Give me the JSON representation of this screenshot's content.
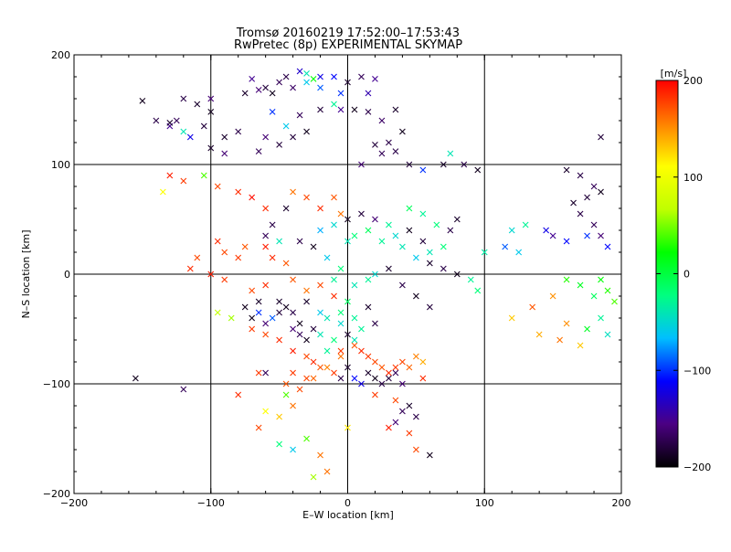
{
  "chart_data": {
    "type": "scatter",
    "title": "Tromsø 20160219 17:52:00–17:53:43",
    "subtitle": "RwPretec (8p) EXPERIMENTAL SKYMAP",
    "xlabel": "E–W location [km]",
    "ylabel": "N–S location [km]",
    "xlim": [
      -200,
      200
    ],
    "ylim": [
      -200,
      200
    ],
    "xticks": [
      -200,
      -100,
      0,
      100,
      200
    ],
    "yticks": [
      -200,
      -100,
      0,
      100,
      200
    ],
    "xtick_labels": [
      "−200",
      "−100",
      "0",
      "100",
      "200"
    ],
    "ytick_labels": [
      "−200",
      "−100",
      "0",
      "100",
      "200"
    ],
    "grid": true,
    "grid_lines": [
      -100,
      0,
      100
    ],
    "colorbar": {
      "label": "[m/s]",
      "range": [
        -200,
        200
      ],
      "ticks": [
        200,
        100,
        0,
        -100,
        -200
      ],
      "tick_labels": [
        "200",
        "100",
        "0",
        "−100",
        "−200"
      ],
      "colormap": [
        "#000000",
        "#4b0082",
        "#0000ff",
        "#00bfff",
        "#00ff80",
        "#00ff00",
        "#c0ff00",
        "#ffff00",
        "#ff8000",
        "#ff0000"
      ]
    },
    "marker_types": [
      "dot",
      "x"
    ],
    "points": [
      [
        -60,
        170,
        -180,
        "x"
      ],
      [
        -55,
        165,
        -190,
        "x"
      ],
      [
        -65,
        168,
        -160,
        "x"
      ],
      [
        -50,
        175,
        -170,
        "x"
      ],
      [
        -70,
        178,
        -150,
        "x"
      ],
      [
        -45,
        180,
        -175,
        "x"
      ],
      [
        -40,
        170,
        -165,
        "x"
      ],
      [
        -75,
        165,
        -185,
        "x"
      ],
      [
        -30,
        175,
        -60,
        "x"
      ],
      [
        -25,
        178,
        20,
        "x"
      ],
      [
        -35,
        185,
        -130,
        "x"
      ],
      [
        -20,
        180,
        -120,
        "x"
      ],
      [
        -10,
        180,
        -110,
        "x"
      ],
      [
        0,
        175,
        -185,
        "x"
      ],
      [
        10,
        180,
        -170,
        "x"
      ],
      [
        20,
        178,
        -150,
        "x"
      ],
      [
        -5,
        165,
        -100,
        "x"
      ],
      [
        15,
        165,
        -140,
        "x"
      ],
      [
        -150,
        158,
        -190,
        "x"
      ],
      [
        -120,
        160,
        -175,
        "x"
      ],
      [
        -110,
        155,
        -185,
        "x"
      ],
      [
        -100,
        160,
        -160,
        "x"
      ],
      [
        -125,
        140,
        -170,
        "x"
      ],
      [
        -105,
        135,
        -180,
        "x"
      ],
      [
        -130,
        135,
        -150,
        "x"
      ],
      [
        -115,
        125,
        -120,
        "x"
      ],
      [
        -120,
        130,
        -40,
        "x"
      ],
      [
        -100,
        148,
        -190,
        "x"
      ],
      [
        -90,
        125,
        -185,
        "x"
      ],
      [
        -80,
        130,
        -175,
        "x"
      ],
      [
        -60,
        125,
        -160,
        "x"
      ],
      [
        -40,
        125,
        -180,
        "x"
      ],
      [
        -35,
        145,
        -170,
        "x"
      ],
      [
        -20,
        150,
        -180,
        "x"
      ],
      [
        -10,
        155,
        -30,
        "x"
      ],
      [
        -5,
        150,
        -150,
        "x"
      ],
      [
        5,
        150,
        -190,
        "x"
      ],
      [
        -55,
        148,
        -100,
        "x"
      ],
      [
        -45,
        135,
        -60,
        "x"
      ],
      [
        -30,
        130,
        -190,
        "x"
      ],
      [
        -50,
        118,
        -180,
        "x"
      ],
      [
        -65,
        112,
        -170,
        "x"
      ],
      [
        -100,
        115,
        -185,
        "x"
      ],
      [
        -90,
        110,
        -160,
        "x"
      ],
      [
        -130,
        138,
        -185,
        "x"
      ],
      [
        -140,
        140,
        -175,
        "x"
      ],
      [
        185,
        125,
        -180,
        "x"
      ],
      [
        -30,
        183,
        -40,
        "x"
      ],
      [
        -20,
        170,
        -90,
        "x"
      ],
      [
        15,
        148,
        -175,
        "x"
      ],
      [
        25,
        140,
        -165,
        "x"
      ],
      [
        35,
        150,
        -185,
        "x"
      ],
      [
        40,
        130,
        -190,
        "x"
      ],
      [
        30,
        120,
        -175,
        "x"
      ],
      [
        25,
        110,
        -170,
        "x"
      ],
      [
        45,
        100,
        -180,
        "x"
      ],
      [
        55,
        95,
        -100,
        "x"
      ],
      [
        70,
        100,
        -185,
        "x"
      ],
      [
        85,
        100,
        -175,
        "x"
      ],
      [
        95,
        95,
        -190,
        "x"
      ],
      [
        75,
        110,
        -40,
        "x"
      ],
      [
        20,
        118,
        -180,
        "x"
      ],
      [
        35,
        112,
        -175,
        "x"
      ],
      [
        10,
        100,
        -160,
        "x"
      ],
      [
        160,
        95,
        -185,
        "x"
      ],
      [
        170,
        90,
        -175,
        "x"
      ],
      [
        180,
        80,
        -170,
        "x"
      ],
      [
        175,
        70,
        -180,
        "x"
      ],
      [
        185,
        75,
        -190,
        "x"
      ],
      [
        165,
        65,
        -185,
        "x"
      ],
      [
        170,
        55,
        -175,
        "x"
      ],
      [
        180,
        45,
        -170,
        "x"
      ],
      [
        185,
        35,
        -160,
        "x"
      ],
      [
        190,
        25,
        -110,
        "x"
      ],
      [
        175,
        35,
        -100,
        "x"
      ],
      [
        120,
        40,
        -50,
        "x"
      ],
      [
        130,
        45,
        -30,
        "x"
      ],
      [
        145,
        40,
        -120,
        "x"
      ],
      [
        150,
        35,
        -150,
        "x"
      ],
      [
        160,
        30,
        -110,
        "x"
      ],
      [
        115,
        25,
        -90,
        "x"
      ],
      [
        125,
        20,
        -60,
        "x"
      ],
      [
        100,
        20,
        -35,
        "x"
      ],
      [
        120,
        -40,
        130,
        "x"
      ],
      [
        160,
        -5,
        30,
        "x"
      ],
      [
        170,
        -10,
        10,
        "x"
      ],
      [
        180,
        -20,
        -10,
        "x"
      ],
      [
        185,
        -40,
        -30,
        "x"
      ],
      [
        190,
        -55,
        -45,
        "x"
      ],
      [
        175,
        -50,
        10,
        "x"
      ],
      [
        170,
        -65,
        130,
        "x"
      ],
      [
        160,
        -45,
        150,
        "x"
      ],
      [
        150,
        -20,
        150,
        "x"
      ],
      [
        135,
        -30,
        170,
        "x"
      ],
      [
        185,
        -5,
        20,
        "x"
      ],
      [
        190,
        -15,
        30,
        "x"
      ],
      [
        195,
        -25,
        40,
        "x"
      ],
      [
        140,
        -55,
        140,
        "x"
      ],
      [
        155,
        -60,
        160,
        "x"
      ],
      [
        -130,
        90,
        190,
        "x"
      ],
      [
        -135,
        75,
        110,
        "x"
      ],
      [
        -120,
        85,
        180,
        "x"
      ],
      [
        -105,
        90,
        40,
        "x"
      ],
      [
        -95,
        80,
        175,
        "x"
      ],
      [
        -80,
        75,
        185,
        "x"
      ],
      [
        -70,
        70,
        195,
        "x"
      ],
      [
        -60,
        60,
        185,
        "x"
      ],
      [
        -40,
        75,
        160,
        "x"
      ],
      [
        -30,
        70,
        175,
        "x"
      ],
      [
        -20,
        60,
        185,
        "x"
      ],
      [
        -10,
        70,
        170,
        "x"
      ],
      [
        -5,
        55,
        160,
        "x"
      ],
      [
        -95,
        30,
        185,
        "x"
      ],
      [
        -90,
        20,
        175,
        "x"
      ],
      [
        -80,
        15,
        180,
        "x"
      ],
      [
        -75,
        25,
        170,
        "x"
      ],
      [
        -60,
        25,
        190,
        "x"
      ],
      [
        -55,
        15,
        185,
        "x"
      ],
      [
        -45,
        10,
        170,
        "x"
      ],
      [
        -110,
        15,
        175,
        "x"
      ],
      [
        -115,
        5,
        185,
        "x"
      ],
      [
        -100,
        0,
        190,
        "x"
      ],
      [
        -90,
        -5,
        180,
        "x"
      ],
      [
        -70,
        -15,
        175,
        "x"
      ],
      [
        -60,
        -10,
        185,
        "x"
      ],
      [
        -40,
        -5,
        170,
        "x"
      ],
      [
        -30,
        -15,
        160,
        "x"
      ],
      [
        -20,
        -10,
        175,
        "x"
      ],
      [
        -10,
        -20,
        185,
        "x"
      ],
      [
        -45,
        -30,
        -190,
        "x"
      ],
      [
        -40,
        -35,
        -175,
        "x"
      ],
      [
        -30,
        -25,
        -185,
        "x"
      ],
      [
        -55,
        -40,
        -90,
        "x"
      ],
      [
        -65,
        -35,
        -100,
        "x"
      ],
      [
        -85,
        -40,
        60,
        "x"
      ],
      [
        -95,
        -35,
        70,
        "x"
      ],
      [
        -70,
        -50,
        180,
        "x"
      ],
      [
        -60,
        -55,
        175,
        "x"
      ],
      [
        -50,
        -60,
        185,
        "x"
      ],
      [
        -40,
        -70,
        190,
        "x"
      ],
      [
        -30,
        -75,
        175,
        "x"
      ],
      [
        -25,
        -80,
        185,
        "x"
      ],
      [
        -20,
        -85,
        170,
        "x"
      ],
      [
        -10,
        -90,
        180,
        "x"
      ],
      [
        -30,
        -95,
        175,
        "x"
      ],
      [
        -40,
        -90,
        180,
        "x"
      ],
      [
        -45,
        -100,
        170,
        "x"
      ],
      [
        -35,
        -105,
        175,
        "x"
      ],
      [
        -25,
        -95,
        165,
        "x"
      ],
      [
        -15,
        -85,
        155,
        "x"
      ],
      [
        -5,
        -75,
        160,
        "x"
      ],
      [
        5,
        -65,
        170,
        "x"
      ],
      [
        10,
        -70,
        185,
        "x"
      ],
      [
        15,
        -75,
        180,
        "x"
      ],
      [
        20,
        -80,
        175,
        "x"
      ],
      [
        25,
        -85,
        170,
        "x"
      ],
      [
        30,
        -90,
        185,
        "x"
      ],
      [
        35,
        -85,
        180,
        "x"
      ],
      [
        40,
        -80,
        175,
        "x"
      ],
      [
        45,
        -85,
        165,
        "x"
      ],
      [
        50,
        -75,
        155,
        "x"
      ],
      [
        55,
        -80,
        140,
        "x"
      ],
      [
        15,
        -90,
        -185,
        "x"
      ],
      [
        20,
        -95,
        -190,
        "x"
      ],
      [
        25,
        -100,
        -175,
        "x"
      ],
      [
        30,
        -95,
        -180,
        "x"
      ],
      [
        35,
        -90,
        -170,
        "x"
      ],
      [
        40,
        -100,
        -160,
        "x"
      ],
      [
        10,
        -100,
        -120,
        "x"
      ],
      [
        5,
        -95,
        -110,
        "x"
      ],
      [
        0,
        -85,
        -185,
        "x"
      ],
      [
        -5,
        -95,
        -175,
        "x"
      ],
      [
        20,
        -110,
        180,
        "x"
      ],
      [
        35,
        -115,
        175,
        "x"
      ],
      [
        55,
        -95,
        185,
        "x"
      ],
      [
        45,
        -120,
        -185,
        "x"
      ],
      [
        50,
        -130,
        -175,
        "x"
      ],
      [
        40,
        -125,
        -170,
        "x"
      ],
      [
        35,
        -135,
        -160,
        "x"
      ],
      [
        30,
        -140,
        190,
        "x"
      ],
      [
        45,
        -145,
        180,
        "x"
      ],
      [
        50,
        -160,
        175,
        "x"
      ],
      [
        60,
        -165,
        -190,
        "x"
      ],
      [
        -45,
        -110,
        40,
        "x"
      ],
      [
        -40,
        -120,
        160,
        "x"
      ],
      [
        -50,
        -130,
        130,
        "x"
      ],
      [
        -60,
        -125,
        110,
        "x"
      ],
      [
        -65,
        -140,
        175,
        "x"
      ],
      [
        -30,
        -150,
        40,
        "x"
      ],
      [
        -20,
        -165,
        160,
        "x"
      ],
      [
        -50,
        -155,
        -20,
        "x"
      ],
      [
        -40,
        -160,
        -60,
        "x"
      ],
      [
        -25,
        -185,
        60,
        "x"
      ],
      [
        -15,
        -180,
        160,
        "x"
      ],
      [
        -155,
        -95,
        -190,
        "x"
      ],
      [
        -120,
        -105,
        -170,
        "x"
      ],
      [
        -80,
        -110,
        185,
        "x"
      ],
      [
        -65,
        -90,
        180,
        "x"
      ],
      [
        0,
        -140,
        120,
        "x"
      ],
      [
        -20,
        40,
        -70,
        "x"
      ],
      [
        -10,
        45,
        -50,
        "x"
      ],
      [
        0,
        50,
        -190,
        "x"
      ],
      [
        10,
        55,
        -180,
        "x"
      ],
      [
        20,
        50,
        -160,
        "x"
      ],
      [
        30,
        45,
        -30,
        "x"
      ],
      [
        -25,
        25,
        -190,
        "x"
      ],
      [
        -35,
        30,
        -175,
        "x"
      ],
      [
        -15,
        15,
        -60,
        "x"
      ],
      [
        0,
        30,
        -40,
        "x"
      ],
      [
        5,
        35,
        -20,
        "x"
      ],
      [
        15,
        40,
        -10,
        "x"
      ],
      [
        25,
        30,
        -30,
        "x"
      ],
      [
        35,
        35,
        -50,
        "x"
      ],
      [
        45,
        40,
        -190,
        "x"
      ],
      [
        55,
        30,
        -180,
        "x"
      ],
      [
        60,
        20,
        -40,
        "x"
      ],
      [
        70,
        25,
        -20,
        "x"
      ],
      [
        -10,
        -5,
        -30,
        "x"
      ],
      [
        -5,
        5,
        -20,
        "x"
      ],
      [
        5,
        -10,
        -40,
        "x"
      ],
      [
        15,
        -5,
        -30,
        "x"
      ],
      [
        20,
        0,
        -50,
        "x"
      ],
      [
        30,
        5,
        -185,
        "x"
      ],
      [
        40,
        -10,
        -175,
        "x"
      ],
      [
        50,
        -20,
        -190,
        "x"
      ],
      [
        60,
        -30,
        -180,
        "x"
      ],
      [
        -50,
        -25,
        -185,
        "x"
      ],
      [
        -35,
        -45,
        -190,
        "x"
      ],
      [
        -20,
        -35,
        -60,
        "x"
      ],
      [
        -15,
        -40,
        -40,
        "x"
      ],
      [
        -5,
        -35,
        -20,
        "x"
      ],
      [
        5,
        -40,
        -30,
        "x"
      ],
      [
        15,
        -30,
        -185,
        "x"
      ],
      [
        -60,
        -45,
        -160,
        "x"
      ],
      [
        -75,
        -30,
        -190,
        "x"
      ],
      [
        -45,
        60,
        -185,
        "x"
      ],
      [
        -55,
        45,
        -175,
        "x"
      ],
      [
        -60,
        35,
        -170,
        "x"
      ],
      [
        -50,
        30,
        -40,
        "x"
      ],
      [
        80,
        50,
        -185,
        "x"
      ],
      [
        75,
        40,
        -175,
        "x"
      ],
      [
        65,
        45,
        -20,
        "x"
      ],
      [
        55,
        55,
        -30,
        "x"
      ],
      [
        45,
        60,
        -10,
        "x"
      ],
      [
        40,
        25,
        -40,
        "x"
      ],
      [
        50,
        15,
        -60,
        "x"
      ],
      [
        60,
        10,
        -185,
        "x"
      ],
      [
        70,
        5,
        -175,
        "x"
      ],
      [
        80,
        0,
        -190,
        "x"
      ],
      [
        90,
        -5,
        -30,
        "x"
      ],
      [
        95,
        -15,
        -20,
        "x"
      ],
      [
        -20,
        -55,
        -40,
        "x"
      ],
      [
        -10,
        -60,
        -20,
        "x"
      ],
      [
        0,
        -55,
        -185,
        "x"
      ],
      [
        10,
        -50,
        -30,
        "x"
      ],
      [
        20,
        -45,
        -175,
        "x"
      ],
      [
        -30,
        -60,
        -190,
        "x"
      ],
      [
        -25,
        -50,
        -180,
        "x"
      ],
      [
        -35,
        -55,
        -170,
        "x"
      ],
      [
        -5,
        -45,
        -50,
        "x"
      ],
      [
        5,
        -60,
        -40,
        "x"
      ],
      [
        -15,
        -70,
        -30,
        "x"
      ],
      [
        -5,
        -70,
        180,
        "x"
      ],
      [
        0,
        -25,
        -10,
        "x"
      ],
      [
        -60,
        -90,
        -170,
        "x"
      ],
      [
        -40,
        -50,
        -160,
        "x"
      ],
      [
        -65,
        -25,
        -185,
        "x"
      ],
      [
        -70,
        -40,
        -190,
        "x"
      ],
      [
        -50,
        -35,
        -180,
        "x"
      ]
    ]
  }
}
